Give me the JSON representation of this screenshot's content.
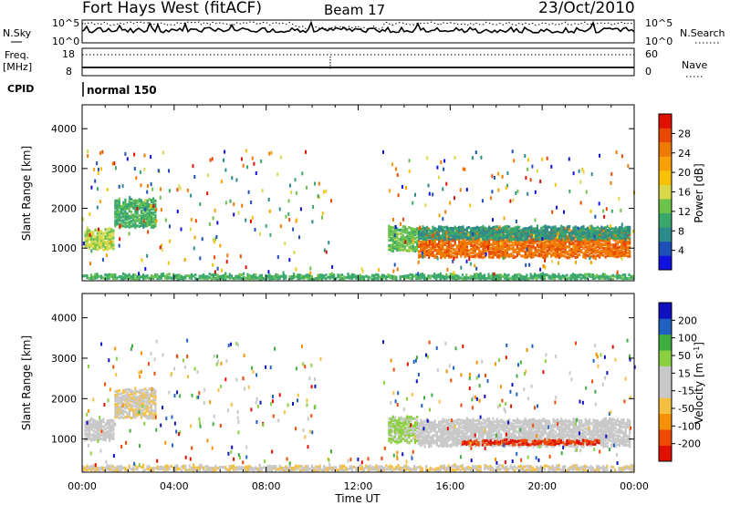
{
  "header": {
    "station": "Fort Hays West (fitACF)",
    "beam": "Beam 17",
    "date": "23/Oct/2010"
  },
  "param_panel": {
    "nsky_label": "N.Sky",
    "nsky_ticks": [
      "10^5",
      "10^0"
    ],
    "nsearch_label": "N.Search",
    "nsearch_ticks": [
      "10^5",
      "10^0"
    ],
    "freq_label": "Freq.",
    "freq_unit": "[MHz]",
    "freq_ticks": [
      "18",
      "8"
    ],
    "nave_label": "Nave",
    "nave_ticks": [
      "60",
      "0"
    ],
    "cpid_label": "CPID",
    "cpid_value": "normal 150"
  },
  "chart_data": [
    {
      "type": "heatmap",
      "name": "power",
      "ylabel": "Slant Range [km]",
      "xlabel": "Time UT",
      "xlim_hours": [
        0,
        24
      ],
      "ylim_km": [
        180,
        4600
      ],
      "yticks": [
        "4000",
        "3000",
        "2000",
        "1000"
      ],
      "colorbar": {
        "label": "Power [dB]",
        "ticks": [
          "28",
          "24",
          "20",
          "16",
          "12",
          "8",
          "4"
        ],
        "range": [
          0,
          30
        ],
        "colors": [
          "#1010e0",
          "#1e4fb8",
          "#2d8a8a",
          "#3aa86a",
          "#6cc24a",
          "#d8d84a",
          "#f7c000",
          "#f7a000",
          "#f07a00",
          "#e84800",
          "#e01000"
        ]
      },
      "bands": [
        {
          "t0": 0.1,
          "t1": 1.4,
          "r0": 950,
          "r1": 1450,
          "value": 14
        },
        {
          "t0": 1.4,
          "t1": 3.2,
          "r0": 1500,
          "r1": 2200,
          "value": 10
        },
        {
          "t0": 13.3,
          "t1": 14.6,
          "r0": 900,
          "r1": 1500,
          "value": 12
        },
        {
          "t0": 14.6,
          "t1": 23.8,
          "r0": 750,
          "r1": 1450,
          "value": 24
        },
        {
          "t0": 14.6,
          "t1": 23.8,
          "r0": 1200,
          "r1": 1500,
          "value": 8
        },
        {
          "t0": 0.0,
          "t1": 24.0,
          "r0": 180,
          "r1": 300,
          "value": 10
        }
      ]
    },
    {
      "type": "heatmap",
      "name": "velocity",
      "ylabel": "Slant Range [km]",
      "xlabel": "Time UT",
      "xlim_hours": [
        0,
        24
      ],
      "ylim_km": [
        180,
        4600
      ],
      "yticks": [
        "4000",
        "3000",
        "2000",
        "1000"
      ],
      "xticks": [
        "00:00",
        "04:00",
        "08:00",
        "12:00",
        "16:00",
        "20:00",
        "00:00"
      ],
      "colorbar": {
        "label": "Velocity [m s",
        "label_sup": "-1",
        "label_end": "]",
        "ticks": [
          "200",
          "100",
          "50",
          "15",
          "-15",
          "-50",
          "-100",
          "-200"
        ],
        "range": [
          -250,
          250
        ],
        "colors": [
          "#e01000",
          "#f04a00",
          "#f59000",
          "#f5c040",
          "#c8c8c8",
          "#c8c8c8",
          "#8ad040",
          "#3fae3f",
          "#2060c0",
          "#1010c0"
        ]
      },
      "bands": [
        {
          "t0": 0.1,
          "t1": 1.4,
          "r0": 950,
          "r1": 1450,
          "value": -10
        },
        {
          "t0": 1.4,
          "t1": 3.2,
          "r0": 1500,
          "r1": 2200,
          "value": -40
        },
        {
          "t0": 13.3,
          "t1": 14.6,
          "r0": 900,
          "r1": 1500,
          "value": 60
        },
        {
          "t0": 14.6,
          "t1": 23.8,
          "r0": 800,
          "r1": 1450,
          "value": 0
        },
        {
          "t0": 16.5,
          "t1": 22.5,
          "r0": 850,
          "r1": 930,
          "value": -200
        },
        {
          "t0": 0.0,
          "t1": 24.0,
          "r0": 180,
          "r1": 300,
          "value": -40
        }
      ]
    }
  ]
}
